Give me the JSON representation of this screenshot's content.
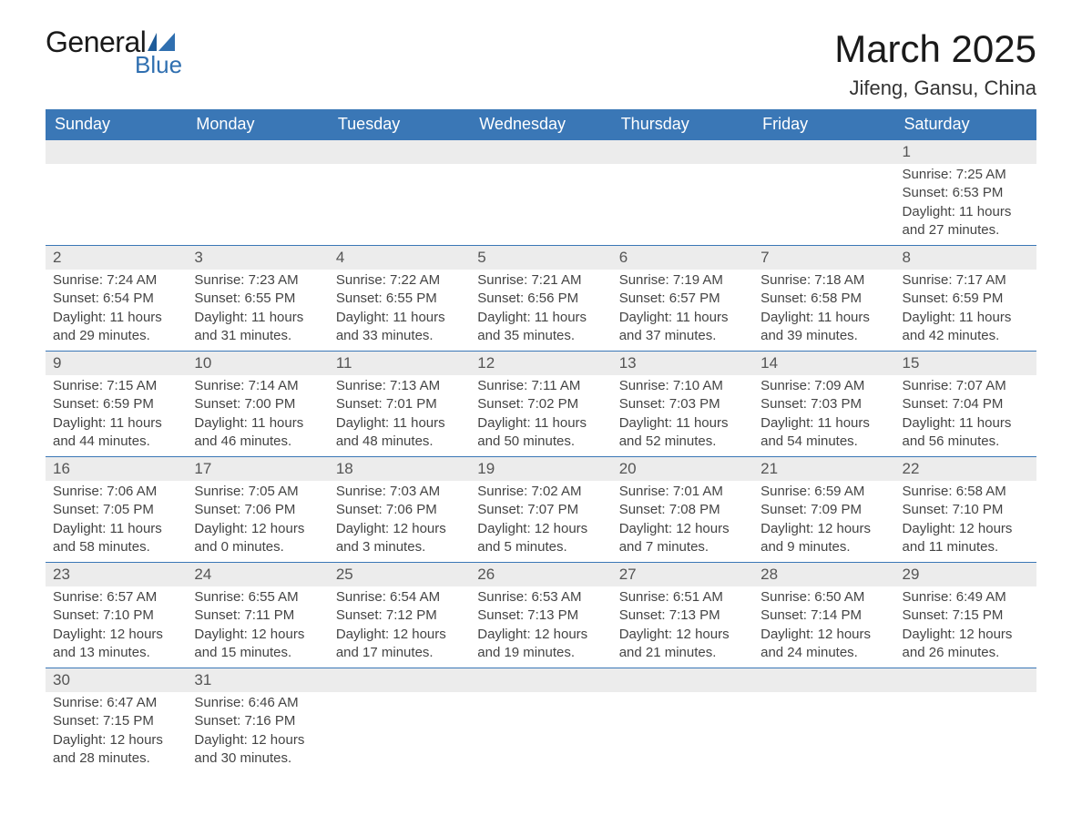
{
  "brand": {
    "line1": "General",
    "line2": "Blue"
  },
  "title": "March 2025",
  "location": "Jifeng, Gansu, China",
  "colors": {
    "header_bg": "#3a77b6",
    "header_text": "#ffffff",
    "daynum_bg": "#ececec",
    "body_text": "#444444",
    "rule": "#3a77b6",
    "logo_blue": "#2f6fb0"
  },
  "weekdays": [
    "Sunday",
    "Monday",
    "Tuesday",
    "Wednesday",
    "Thursday",
    "Friday",
    "Saturday"
  ],
  "weeks": [
    [
      null,
      null,
      null,
      null,
      null,
      null,
      {
        "n": "1",
        "sunrise": "Sunrise: 7:25 AM",
        "sunset": "Sunset: 6:53 PM",
        "day1": "Daylight: 11 hours",
        "day2": "and 27 minutes."
      }
    ],
    [
      {
        "n": "2",
        "sunrise": "Sunrise: 7:24 AM",
        "sunset": "Sunset: 6:54 PM",
        "day1": "Daylight: 11 hours",
        "day2": "and 29 minutes."
      },
      {
        "n": "3",
        "sunrise": "Sunrise: 7:23 AM",
        "sunset": "Sunset: 6:55 PM",
        "day1": "Daylight: 11 hours",
        "day2": "and 31 minutes."
      },
      {
        "n": "4",
        "sunrise": "Sunrise: 7:22 AM",
        "sunset": "Sunset: 6:55 PM",
        "day1": "Daylight: 11 hours",
        "day2": "and 33 minutes."
      },
      {
        "n": "5",
        "sunrise": "Sunrise: 7:21 AM",
        "sunset": "Sunset: 6:56 PM",
        "day1": "Daylight: 11 hours",
        "day2": "and 35 minutes."
      },
      {
        "n": "6",
        "sunrise": "Sunrise: 7:19 AM",
        "sunset": "Sunset: 6:57 PM",
        "day1": "Daylight: 11 hours",
        "day2": "and 37 minutes."
      },
      {
        "n": "7",
        "sunrise": "Sunrise: 7:18 AM",
        "sunset": "Sunset: 6:58 PM",
        "day1": "Daylight: 11 hours",
        "day2": "and 39 minutes."
      },
      {
        "n": "8",
        "sunrise": "Sunrise: 7:17 AM",
        "sunset": "Sunset: 6:59 PM",
        "day1": "Daylight: 11 hours",
        "day2": "and 42 minutes."
      }
    ],
    [
      {
        "n": "9",
        "sunrise": "Sunrise: 7:15 AM",
        "sunset": "Sunset: 6:59 PM",
        "day1": "Daylight: 11 hours",
        "day2": "and 44 minutes."
      },
      {
        "n": "10",
        "sunrise": "Sunrise: 7:14 AM",
        "sunset": "Sunset: 7:00 PM",
        "day1": "Daylight: 11 hours",
        "day2": "and 46 minutes."
      },
      {
        "n": "11",
        "sunrise": "Sunrise: 7:13 AM",
        "sunset": "Sunset: 7:01 PM",
        "day1": "Daylight: 11 hours",
        "day2": "and 48 minutes."
      },
      {
        "n": "12",
        "sunrise": "Sunrise: 7:11 AM",
        "sunset": "Sunset: 7:02 PM",
        "day1": "Daylight: 11 hours",
        "day2": "and 50 minutes."
      },
      {
        "n": "13",
        "sunrise": "Sunrise: 7:10 AM",
        "sunset": "Sunset: 7:03 PM",
        "day1": "Daylight: 11 hours",
        "day2": "and 52 minutes."
      },
      {
        "n": "14",
        "sunrise": "Sunrise: 7:09 AM",
        "sunset": "Sunset: 7:03 PM",
        "day1": "Daylight: 11 hours",
        "day2": "and 54 minutes."
      },
      {
        "n": "15",
        "sunrise": "Sunrise: 7:07 AM",
        "sunset": "Sunset: 7:04 PM",
        "day1": "Daylight: 11 hours",
        "day2": "and 56 minutes."
      }
    ],
    [
      {
        "n": "16",
        "sunrise": "Sunrise: 7:06 AM",
        "sunset": "Sunset: 7:05 PM",
        "day1": "Daylight: 11 hours",
        "day2": "and 58 minutes."
      },
      {
        "n": "17",
        "sunrise": "Sunrise: 7:05 AM",
        "sunset": "Sunset: 7:06 PM",
        "day1": "Daylight: 12 hours",
        "day2": "and 0 minutes."
      },
      {
        "n": "18",
        "sunrise": "Sunrise: 7:03 AM",
        "sunset": "Sunset: 7:06 PM",
        "day1": "Daylight: 12 hours",
        "day2": "and 3 minutes."
      },
      {
        "n": "19",
        "sunrise": "Sunrise: 7:02 AM",
        "sunset": "Sunset: 7:07 PM",
        "day1": "Daylight: 12 hours",
        "day2": "and 5 minutes."
      },
      {
        "n": "20",
        "sunrise": "Sunrise: 7:01 AM",
        "sunset": "Sunset: 7:08 PM",
        "day1": "Daylight: 12 hours",
        "day2": "and 7 minutes."
      },
      {
        "n": "21",
        "sunrise": "Sunrise: 6:59 AM",
        "sunset": "Sunset: 7:09 PM",
        "day1": "Daylight: 12 hours",
        "day2": "and 9 minutes."
      },
      {
        "n": "22",
        "sunrise": "Sunrise: 6:58 AM",
        "sunset": "Sunset: 7:10 PM",
        "day1": "Daylight: 12 hours",
        "day2": "and 11 minutes."
      }
    ],
    [
      {
        "n": "23",
        "sunrise": "Sunrise: 6:57 AM",
        "sunset": "Sunset: 7:10 PM",
        "day1": "Daylight: 12 hours",
        "day2": "and 13 minutes."
      },
      {
        "n": "24",
        "sunrise": "Sunrise: 6:55 AM",
        "sunset": "Sunset: 7:11 PM",
        "day1": "Daylight: 12 hours",
        "day2": "and 15 minutes."
      },
      {
        "n": "25",
        "sunrise": "Sunrise: 6:54 AM",
        "sunset": "Sunset: 7:12 PM",
        "day1": "Daylight: 12 hours",
        "day2": "and 17 minutes."
      },
      {
        "n": "26",
        "sunrise": "Sunrise: 6:53 AM",
        "sunset": "Sunset: 7:13 PM",
        "day1": "Daylight: 12 hours",
        "day2": "and 19 minutes."
      },
      {
        "n": "27",
        "sunrise": "Sunrise: 6:51 AM",
        "sunset": "Sunset: 7:13 PM",
        "day1": "Daylight: 12 hours",
        "day2": "and 21 minutes."
      },
      {
        "n": "28",
        "sunrise": "Sunrise: 6:50 AM",
        "sunset": "Sunset: 7:14 PM",
        "day1": "Daylight: 12 hours",
        "day2": "and 24 minutes."
      },
      {
        "n": "29",
        "sunrise": "Sunrise: 6:49 AM",
        "sunset": "Sunset: 7:15 PM",
        "day1": "Daylight: 12 hours",
        "day2": "and 26 minutes."
      }
    ],
    [
      {
        "n": "30",
        "sunrise": "Sunrise: 6:47 AM",
        "sunset": "Sunset: 7:15 PM",
        "day1": "Daylight: 12 hours",
        "day2": "and 28 minutes."
      },
      {
        "n": "31",
        "sunrise": "Sunrise: 6:46 AM",
        "sunset": "Sunset: 7:16 PM",
        "day1": "Daylight: 12 hours",
        "day2": "and 30 minutes."
      },
      null,
      null,
      null,
      null,
      null
    ]
  ]
}
